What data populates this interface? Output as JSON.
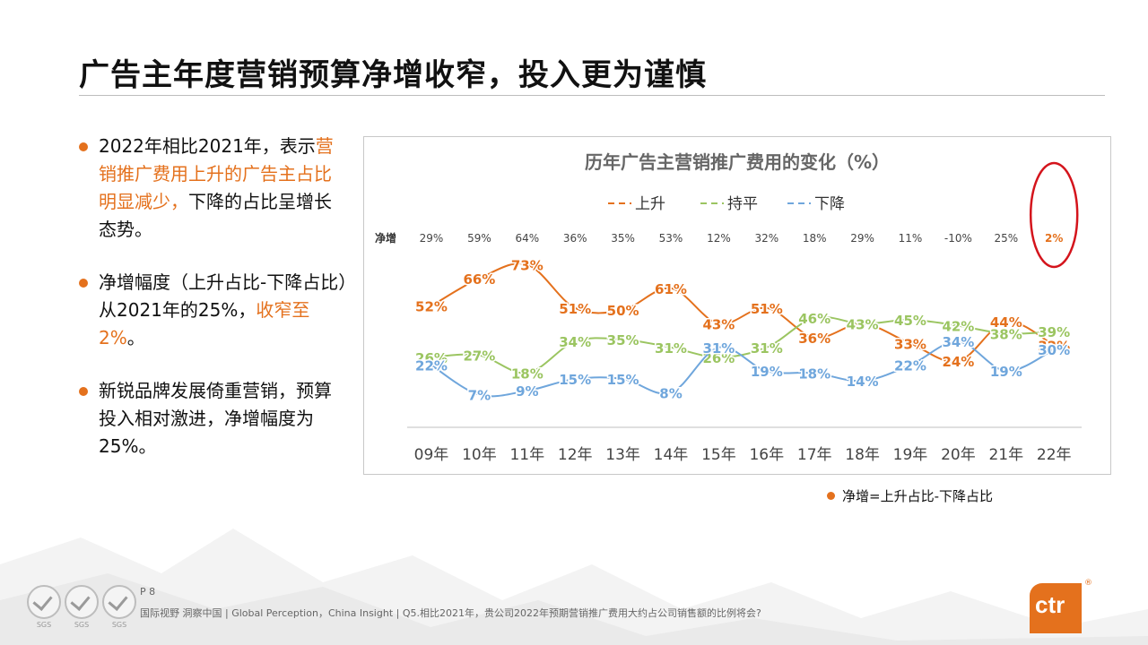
{
  "title": "广告主年度营销预算净增收窄，投入更为谨慎",
  "bullets": [
    {
      "parts": [
        "2022年相比2021年，表示",
        "营销推广费用上升的广告主占比明显减少，",
        "下降的占比呈增长态势。"
      ]
    },
    {
      "parts": [
        "净增幅度（上升占比-下降占比）从2021年的25%，",
        "收窄至2%",
        "。"
      ]
    },
    {
      "parts": [
        "新锐品牌发展倚重营销，预算投入相对激进，净增幅度为25%。"
      ]
    }
  ],
  "note": "净增=上升占比-下降占比",
  "footer": {
    "page": "P 8",
    "text": "国际视野  洞察中国 |  Global Perception，China Insight | Q5.相比2021年，贵公司2022年预期营销推广费用大约占公司销售额的比例将会?",
    "badge_label": "SGS",
    "logo": "ctr",
    "logo_mark": "®"
  },
  "colors": {
    "accent": "#e4711d",
    "up": "#e4711d",
    "flat": "#9bc561",
    "down": "#6fa6dc"
  },
  "chart_data": {
    "type": "line",
    "title": "历年广告主营销推广费用的变化（%）",
    "categories": [
      "09年",
      "10年",
      "11年",
      "12年",
      "13年",
      "14年",
      "15年",
      "16年",
      "17年",
      "18年",
      "19年",
      "20年",
      "21年",
      "22年"
    ],
    "series": [
      {
        "name": "上升",
        "values": [
          52,
          66,
          73,
          51,
          50,
          61,
          43,
          51,
          36,
          43,
          33,
          24,
          44,
          32
        ]
      },
      {
        "name": "持平",
        "values": [
          26,
          27,
          18,
          34,
          35,
          31,
          26,
          31,
          46,
          43,
          45,
          42,
          38,
          39
        ]
      },
      {
        "name": "下降",
        "values": [
          22,
          7,
          9,
          15,
          15,
          8,
          31,
          19,
          18,
          14,
          22,
          34,
          19,
          30
        ]
      }
    ],
    "net_label": "净增",
    "net": [
      "29%",
      "59%",
      "64%",
      "36%",
      "35%",
      "53%",
      "12%",
      "32%",
      "18%",
      "29%",
      "11%",
      "-10%",
      "25%",
      "2%"
    ],
    "legend_position": "top",
    "highlight_category": "22年"
  }
}
